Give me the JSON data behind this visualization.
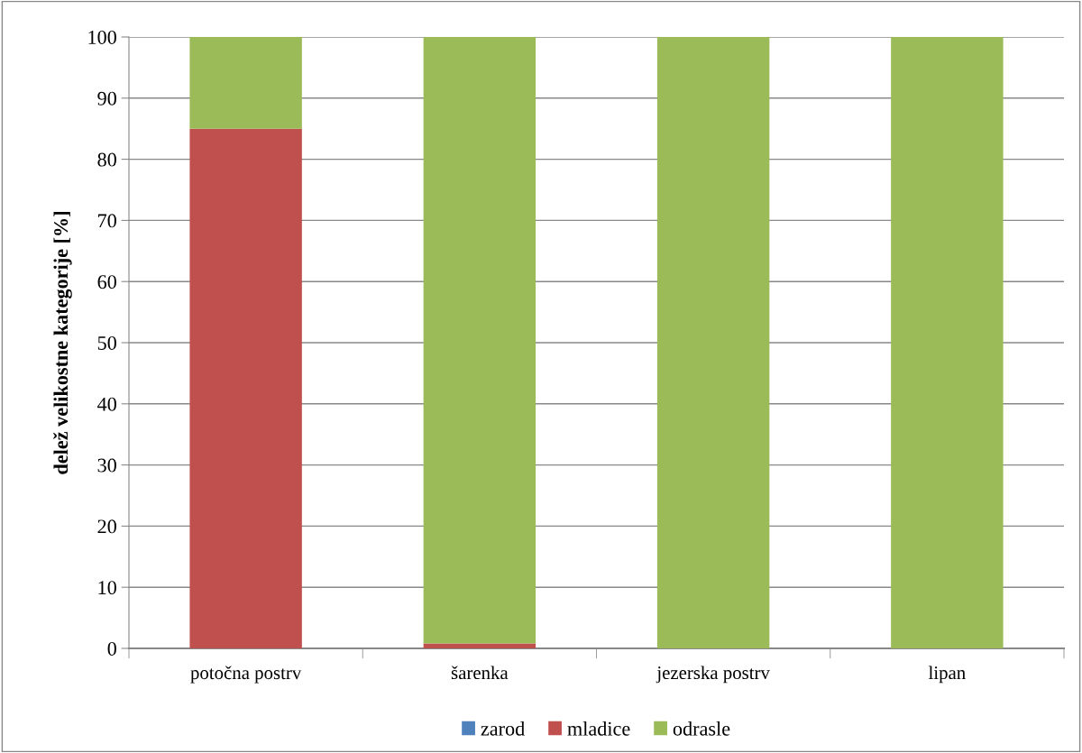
{
  "chart_data": {
    "type": "bar",
    "stacked": true,
    "ylabel": "delež velikostne kategorije [%]",
    "categories": [
      "potočna postrv",
      "šarenka",
      "jezerska postrv",
      "lipan"
    ],
    "series": [
      {
        "name": "zarod",
        "color": "#4f81bd",
        "values": [
          0,
          0,
          0,
          0
        ]
      },
      {
        "name": "mladice",
        "color": "#c0504d",
        "values": [
          85,
          0.8,
          0,
          0
        ]
      },
      {
        "name": "odrasle",
        "color": "#9bbb59",
        "values": [
          15,
          99.2,
          100,
          100
        ]
      }
    ],
    "ylim": [
      0,
      100
    ],
    "yticks": [
      0,
      10,
      20,
      30,
      40,
      50,
      60,
      70,
      80,
      90,
      100
    ],
    "grid": "y",
    "legend": "bottom"
  }
}
